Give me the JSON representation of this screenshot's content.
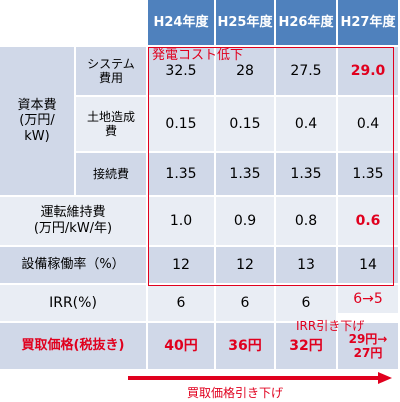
{
  "headers": [
    "H24年度",
    "H25年度",
    "H26年度",
    "H27年度"
  ],
  "group_label": "資本費\n(万円/\nkW)",
  "rows": {
    "system": {
      "label": "システム\n費用",
      "values": [
        "32.5",
        "28",
        "27.5",
        "29.0"
      ]
    },
    "land": {
      "label": "土地造成\n費",
      "values": [
        "0.15",
        "0.15",
        "0.4",
        "0.4"
      ]
    },
    "connect": {
      "label": "接続費",
      "values": [
        "1.35",
        "1.35",
        "1.35",
        "1.35"
      ]
    },
    "om": {
      "label": "運転維持費\n(万円/kW/年)",
      "values": [
        "1.0",
        "0.9",
        "0.8",
        "0.6"
      ]
    },
    "capacity": {
      "label": "設備稼働率（%）",
      "values": [
        "12",
        "12",
        "13",
        "14"
      ]
    },
    "irr": {
      "label": "IRR(%)",
      "values": [
        "6",
        "6",
        "6",
        "6→5"
      ]
    },
    "price": {
      "label": "買取価格(税抜き)",
      "values": [
        "40円",
        "36円",
        "32円",
        "29円→\n27円"
      ]
    }
  },
  "annotations": {
    "cost_down": "発電コスト低下",
    "irr_down": "IRR引き下げ",
    "price_down": "買取価格引き下げ"
  },
  "colors": {
    "header": "#4f81bd",
    "row_dark": "#d0d8e8",
    "row_light": "#e9edf4",
    "accent": "#e0001e"
  }
}
